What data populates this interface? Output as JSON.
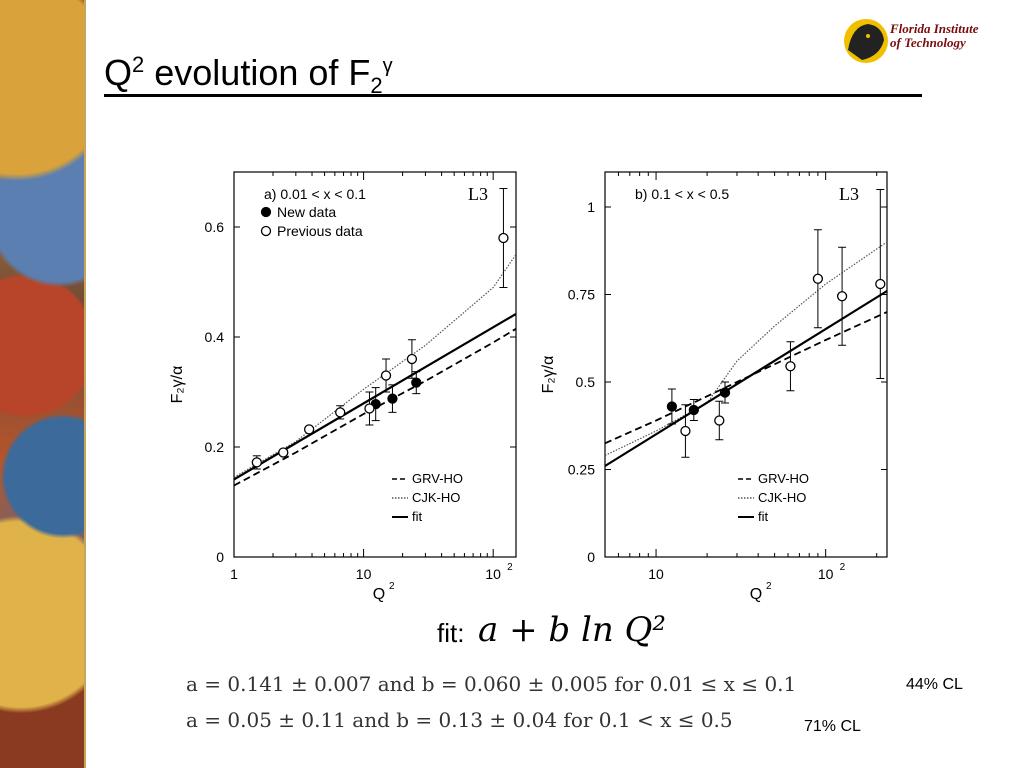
{
  "slide": {
    "title_prefix": "Q",
    "title_sup": "2",
    "title_mid": " evolution of F",
    "title_sub": "2",
    "title_sup2": "γ",
    "logo_line1": "Florida Institute",
    "logo_line2": "of Technology",
    "fit_label": "fit:",
    "fit_formula": "a + b ln Q²",
    "result1": "a = 0.141 ± 0.007 and b = 0.060 ± 0.005 for 0.01 ≤ x ≤ 0.1",
    "result2": "a = 0.05 ± 0.11 and b = 0.13 ± 0.04 for 0.1 < x ≤ 0.5",
    "cl1": "44% CL",
    "cl2": "71% CL"
  },
  "chart_data": [
    {
      "type": "scatter",
      "panel_label": "a)  0.01 < x < 0.1",
      "experiment": "L3",
      "xlabel": "Q²",
      "ylabel": "F₂γ/α",
      "xscale": "log",
      "xlim": [
        1,
        150
      ],
      "ylim": [
        0,
        0.7
      ],
      "x_ticks": [
        {
          "value": 1,
          "label": "1"
        },
        {
          "value": 10,
          "label": "10"
        },
        {
          "value": 100,
          "label": "10²"
        }
      ],
      "y_ticks": [
        {
          "value": 0,
          "label": "0"
        },
        {
          "value": 0.2,
          "label": "0.2"
        },
        {
          "value": 0.4,
          "label": "0.4"
        },
        {
          "value": 0.6,
          "label": "0.6"
        }
      ],
      "legend_top": [
        {
          "name": "New data",
          "marker": "filled-circle"
        },
        {
          "name": "Previous data",
          "marker": "open-circle"
        }
      ],
      "legend_bottom": [
        {
          "name": "GRV-HO",
          "style": "dashed"
        },
        {
          "name": "CJK-HO",
          "style": "dotted"
        },
        {
          "name": "fit",
          "style": "solid"
        }
      ],
      "series_points": [
        {
          "name": "New data",
          "filled": true,
          "points": [
            {
              "x": 12.4,
              "y": 0.278,
              "err": 0.03
            },
            {
              "x": 16.7,
              "y": 0.288,
              "err": 0.025
            },
            {
              "x": 25.5,
              "y": 0.317,
              "err": 0.02
            }
          ]
        },
        {
          "name": "Previous data",
          "filled": false,
          "points": [
            {
              "x": 1.5,
              "y": 0.172,
              "err": 0.012
            },
            {
              "x": 2.4,
              "y": 0.19,
              "err": 0.0
            },
            {
              "x": 3.8,
              "y": 0.232,
              "err": 0.0
            },
            {
              "x": 6.6,
              "y": 0.263,
              "err": 0.012
            },
            {
              "x": 11.1,
              "y": 0.27,
              "err": 0.03
            },
            {
              "x": 14.9,
              "y": 0.33,
              "err": 0.03
            },
            {
              "x": 23.6,
              "y": 0.36,
              "err": 0.035
            },
            {
              "x": 120,
              "y": 0.58,
              "err": 0.09
            }
          ]
        }
      ],
      "curves": [
        {
          "name": "GRV-HO",
          "style": "dashed",
          "x": [
            1,
            3,
            10,
            30,
            100,
            150
          ],
          "y": [
            0.13,
            0.19,
            0.26,
            0.32,
            0.39,
            0.415
          ]
        },
        {
          "name": "CJK-HO",
          "style": "dotted",
          "x": [
            1,
            3,
            10,
            30,
            100,
            150
          ],
          "y": [
            0.145,
            0.21,
            0.305,
            0.385,
            0.49,
            0.55
          ]
        },
        {
          "name": "fit",
          "style": "solid",
          "x": [
            1,
            150
          ],
          "y": [
            0.141,
            0.442
          ]
        }
      ]
    },
    {
      "type": "scatter",
      "panel_label": "b) 0.1 < x < 0.5",
      "experiment": "L3",
      "xlabel": "Q²",
      "ylabel": "F₂γ/α",
      "xscale": "log",
      "xlim": [
        5,
        230
      ],
      "ylim": [
        0,
        1.1
      ],
      "x_ticks": [
        {
          "value": 10,
          "label": "10"
        },
        {
          "value": 100,
          "label": "10²"
        }
      ],
      "y_ticks": [
        {
          "value": 0,
          "label": "0"
        },
        {
          "value": 0.25,
          "label": "0.25"
        },
        {
          "value": 0.5,
          "label": "0.5"
        },
        {
          "value": 0.75,
          "label": "0.75"
        },
        {
          "value": 1,
          "label": "1"
        }
      ],
      "legend_bottom": [
        {
          "name": "GRV-HO",
          "style": "dashed"
        },
        {
          "name": "CJK-HO",
          "style": "dotted"
        },
        {
          "name": "fit",
          "style": "solid"
        }
      ],
      "series_points": [
        {
          "name": "New data",
          "filled": true,
          "points": [
            {
              "x": 12.4,
              "y": 0.43,
              "err": 0.05
            },
            {
              "x": 16.7,
              "y": 0.42,
              "err": 0.03
            },
            {
              "x": 25.5,
              "y": 0.47,
              "err": 0.03
            }
          ]
        },
        {
          "name": "Previous data",
          "filled": false,
          "points": [
            {
              "x": 14.9,
              "y": 0.36,
              "err": 0.075
            },
            {
              "x": 23.6,
              "y": 0.39,
              "err": 0.055
            },
            {
              "x": 62,
              "y": 0.545,
              "err": 0.07
            },
            {
              "x": 90,
              "y": 0.795,
              "err": 0.14
            },
            {
              "x": 125,
              "y": 0.745,
              "err": 0.14
            },
            {
              "x": 210,
              "y": 0.78,
              "err": 0.27
            }
          ]
        }
      ],
      "curves": [
        {
          "name": "GRV-HO",
          "style": "dashed",
          "x": [
            5,
            10,
            30,
            100,
            230
          ],
          "y": [
            0.325,
            0.39,
            0.5,
            0.62,
            0.7
          ]
        },
        {
          "name": "CJK-HO",
          "style": "dotted",
          "x": [
            5,
            10,
            20,
            30,
            50,
            100,
            230
          ],
          "y": [
            0.29,
            0.36,
            0.44,
            0.56,
            0.66,
            0.78,
            0.9
          ]
        },
        {
          "name": "fit",
          "style": "solid",
          "x": [
            5,
            230
          ],
          "y": [
            0.26,
            0.76
          ]
        }
      ]
    }
  ]
}
